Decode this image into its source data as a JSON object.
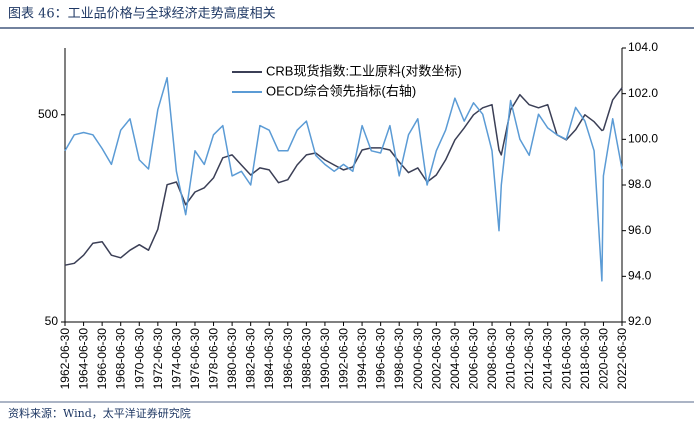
{
  "chart_data": {
    "type": "line",
    "title": "图表 46：工业品价格与全球经济走势高度相关",
    "source": "资料来源：Wind，太平洋证券研究院",
    "x": [
      "1962-06-30",
      "1963-06-30",
      "1964-06-30",
      "1965-06-30",
      "1966-06-30",
      "1967-06-30",
      "1968-06-30",
      "1969-06-30",
      "1970-06-30",
      "1971-06-30",
      "1972-06-30",
      "1973-06-30",
      "1974-06-30",
      "1975-06-30",
      "1976-06-30",
      "1977-06-30",
      "1978-06-30",
      "1979-06-30",
      "1980-06-30",
      "1981-06-30",
      "1982-06-30",
      "1983-06-30",
      "1984-06-30",
      "1985-06-30",
      "1986-06-30",
      "1987-06-30",
      "1988-06-30",
      "1989-06-30",
      "1990-06-30",
      "1991-06-30",
      "1992-06-30",
      "1993-06-30",
      "1994-06-30",
      "1995-06-30",
      "1996-06-30",
      "1997-06-30",
      "1998-06-30",
      "1999-06-30",
      "2000-06-30",
      "2001-06-30",
      "2002-06-30",
      "2003-06-30",
      "2004-06-30",
      "2005-06-30",
      "2006-06-30",
      "2007-06-30",
      "2008-06-30",
      "2009-03-31",
      "2009-06-30",
      "2010-06-30",
      "2011-06-30",
      "2012-06-30",
      "2013-06-30",
      "2014-06-30",
      "2015-06-30",
      "2016-06-30",
      "2017-06-30",
      "2018-06-30",
      "2019-06-30",
      "2020-04-30",
      "2020-06-30",
      "2021-06-30",
      "2022-06-30"
    ],
    "series": [
      {
        "name": "CRB现货指数:工业原料(对数坐标)",
        "color": "#3b3f56",
        "values": [
          94,
          96,
          105,
          120,
          122,
          105,
          102,
          111,
          118,
          111,
          140,
          230,
          237,
          184,
          212,
          222,
          248,
          310,
          320,
          286,
          256,
          277,
          271,
          235,
          243,
          286,
          320,
          327,
          303,
          286,
          271,
          280,
          338,
          346,
          346,
          338,
          296,
          263,
          277,
          237,
          256,
          303,
          378,
          432,
          500,
          540,
          559,
          338,
          320,
          528,
          625,
          559,
          540,
          559,
          400,
          378,
          423,
          500,
          463,
          420,
          423,
          590,
          675
        ]
      },
      {
        "name": "OECD综合领先指标(右轴)",
        "color": "#5b9bd5",
        "axis": "y2",
        "values": [
          99.5,
          100.2,
          100.3,
          100.2,
          99.6,
          98.9,
          100.4,
          100.9,
          99.1,
          98.7,
          101.3,
          102.7,
          98.6,
          96.7,
          99.5,
          98.9,
          100.2,
          100.6,
          98.4,
          98.6,
          98.0,
          100.6,
          100.4,
          99.5,
          99.5,
          100.4,
          100.8,
          99.3,
          98.9,
          98.6,
          98.9,
          98.6,
          100.6,
          99.5,
          99.4,
          100.6,
          98.4,
          100.2,
          100.9,
          98.0,
          99.5,
          100.4,
          101.8,
          100.8,
          101.6,
          101.1,
          99.5,
          96.0,
          98.0,
          101.7,
          100.0,
          99.3,
          101.1,
          100.5,
          100.2,
          100.0,
          101.4,
          100.8,
          99.5,
          93.8,
          98.4,
          100.9,
          98.7
        ]
      }
    ],
    "xlim": [
      "1962-06-30",
      "2022-06-30"
    ],
    "xticks": [
      "1962-06-30",
      "1964-06-30",
      "1966-06-30",
      "1968-06-30",
      "1970-06-30",
      "1972-06-30",
      "1974-06-30",
      "1976-06-30",
      "1978-06-30",
      "1980-06-30",
      "1982-06-30",
      "1984-06-30",
      "1986-06-30",
      "1988-06-30",
      "1990-06-30",
      "1992-06-30",
      "1994-06-30",
      "1996-06-30",
      "1998-06-30",
      "2000-06-30",
      "2002-06-30",
      "2004-06-30",
      "2006-06-30",
      "2008-06-30",
      "2010-06-30",
      "2012-06-30",
      "2014-06-30",
      "2016-06-30",
      "2018-06-30",
      "2020-06-30",
      "2022-06-30"
    ],
    "ylim": [
      50,
      1050
    ],
    "ylog": true,
    "yticks": [
      50,
      500
    ],
    "y2lim": [
      92,
      104
    ],
    "y2ticks": [
      {
        "value": 92,
        "label": "92.0"
      },
      {
        "value": 94,
        "label": "94.0"
      },
      {
        "value": 96,
        "label": "96.0"
      },
      {
        "value": 98,
        "label": "98.0"
      },
      {
        "value": 100,
        "label": "100.0"
      },
      {
        "value": 102,
        "label": "102.0"
      },
      {
        "value": 104,
        "label": "104.0"
      }
    ],
    "grid": false
  }
}
